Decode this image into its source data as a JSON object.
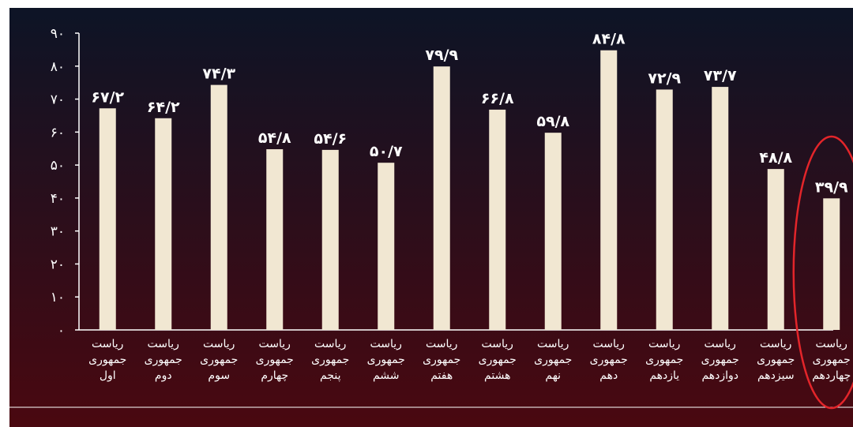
{
  "colors": {
    "bar": "#f1e7d2",
    "axis": "#ffffff",
    "highlight": "#e3252a",
    "background_top": "#0d1426",
    "background_bottom": "#4a0810"
  },
  "chart_data": {
    "type": "bar",
    "title": "",
    "xlabel": "",
    "ylabel": "",
    "ylim": [
      0,
      90
    ],
    "y_ticks": [
      0,
      10,
      20,
      30,
      40,
      50,
      60,
      70,
      80,
      90
    ],
    "y_tick_labels": [
      "۰",
      "۱۰",
      "۲۰",
      "۳۰",
      "۴۰",
      "۵۰",
      "۶۰",
      "۷۰",
      "۸۰",
      "۹۰"
    ],
    "grid": false,
    "categories": [
      [
        "ریاست",
        "جمهوری",
        "اول"
      ],
      [
        "ریاست",
        "جمهوری",
        "دوم"
      ],
      [
        "ریاست",
        "جمهوری",
        "سوم"
      ],
      [
        "ریاست",
        "جمهوری",
        "چهارم"
      ],
      [
        "ریاست",
        "جمهوری",
        "پنجم"
      ],
      [
        "ریاست",
        "جمهوری",
        "ششم"
      ],
      [
        "ریاست",
        "جمهوری",
        "هفتم"
      ],
      [
        "ریاست",
        "جمهوری",
        "هشتم"
      ],
      [
        "ریاست",
        "جمهوری",
        "نهم"
      ],
      [
        "ریاست",
        "جمهوری",
        "دهم"
      ],
      [
        "ریاست",
        "جمهوری",
        "یازدهم"
      ],
      [
        "ریاست",
        "جمهوری",
        "دوازدهم"
      ],
      [
        "ریاست",
        "جمهوری",
        "سیزدهم"
      ],
      [
        "ریاست",
        "جمهوری",
        "چهاردهم"
      ]
    ],
    "values": [
      67.2,
      64.2,
      74.3,
      54.8,
      54.6,
      50.7,
      79.9,
      66.8,
      59.8,
      84.8,
      72.9,
      73.7,
      48.8,
      39.9
    ],
    "value_labels": [
      "۶۷/۲",
      "۶۴/۲",
      "۷۴/۳",
      "۵۴/۸",
      "۵۴/۶",
      "۵۰/۷",
      "۷۹/۹",
      "۶۶/۸",
      "۵۹/۸",
      "۸۴/۸",
      "۷۲/۹",
      "۷۳/۷",
      "۴۸/۸",
      "۳۹/۹"
    ],
    "highlighted_index": 13,
    "highlight_shape": "ellipse"
  }
}
